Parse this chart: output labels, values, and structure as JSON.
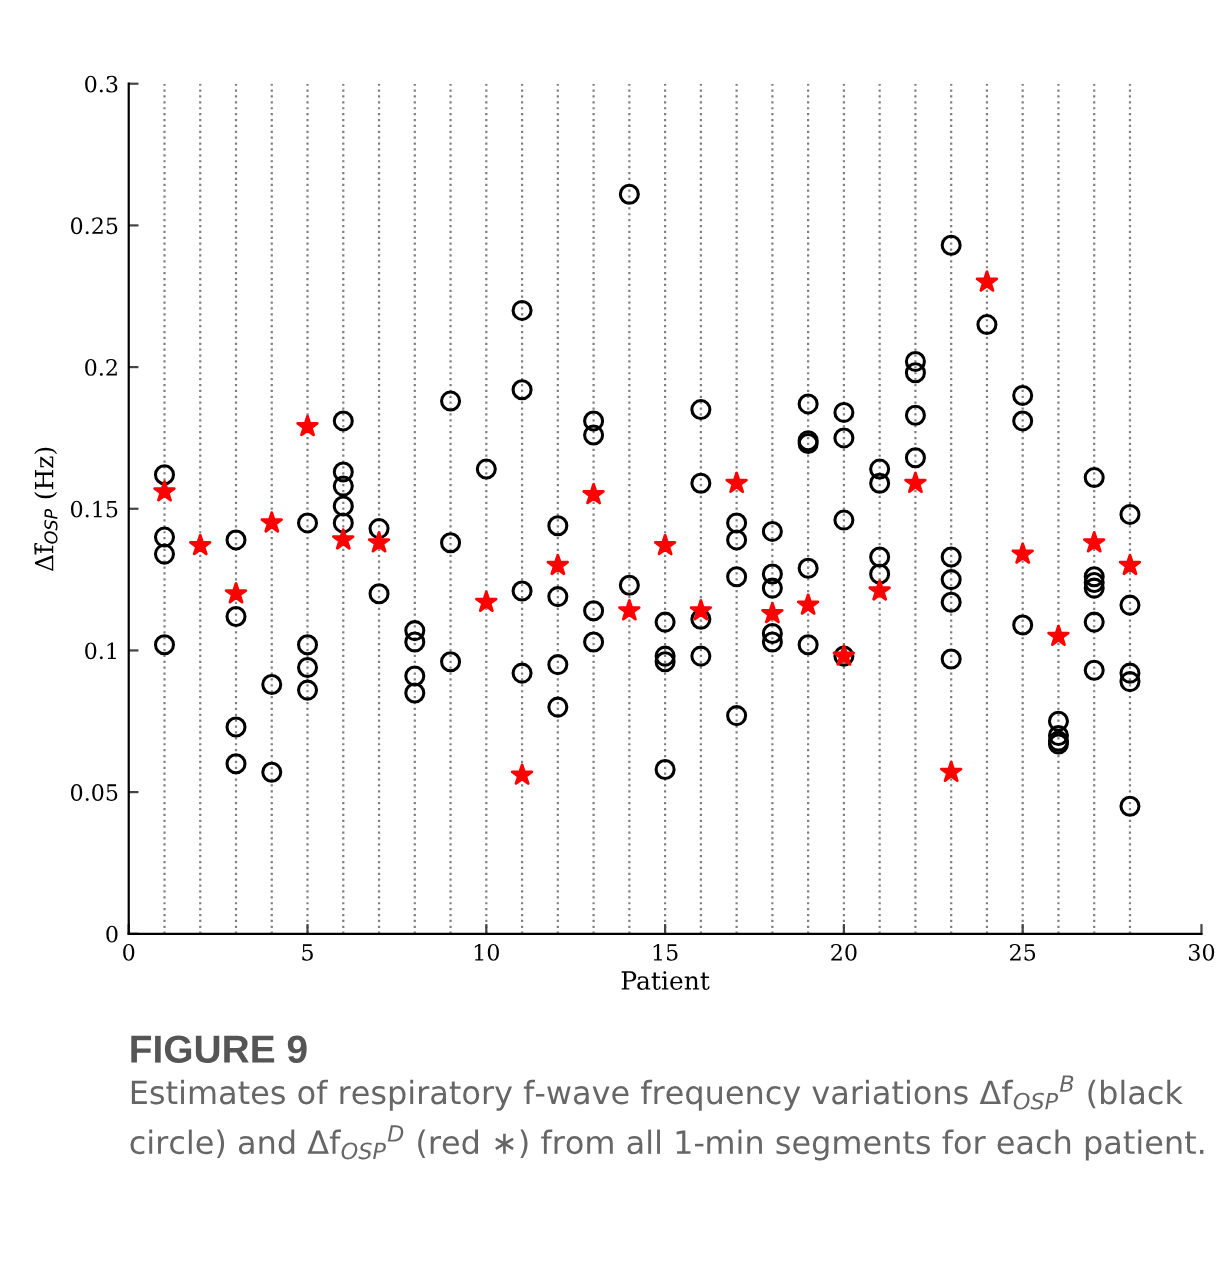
{
  "chart_data": {
    "type": "scatter",
    "title": "FIGURE 9",
    "xlabel": "Patient",
    "ylabel": "Δf̄$_{OSP}$ (Hz)",
    "annotations": [
      "Estimates of respiratory f-wave frequency variations Δf$_{OSP}$$^{B}$ (black circle) and Δf$_{OSP}$$^{D}$ (red ∗) from all 1-min segments for each patient."
    ],
    "xlim": [
      0,
      30
    ],
    "xticks": [
      0,
      5,
      10,
      15,
      20,
      25,
      30
    ],
    "ylim": [
      0,
      0.3
    ],
    "yticks": [
      0,
      0.05,
      0.1,
      0.15,
      0.2,
      0.25,
      0.3
    ],
    "grid": false,
    "legend": false,
    "ref_lines": [
      {
        "axis": "x",
        "value": 1,
        "color": "#808080",
        "line_style": "dotted"
      },
      {
        "axis": "x",
        "value": 2,
        "color": "#808080",
        "line_style": "dotted"
      },
      {
        "axis": "x",
        "value": 3,
        "color": "#808080",
        "line_style": "dotted"
      },
      {
        "axis": "x",
        "value": 4,
        "color": "#808080",
        "line_style": "dotted"
      },
      {
        "axis": "x",
        "value": 5,
        "color": "#808080",
        "line_style": "dotted"
      },
      {
        "axis": "x",
        "value": 6,
        "color": "#808080",
        "line_style": "dotted"
      },
      {
        "axis": "x",
        "value": 7,
        "color": "#808080",
        "line_style": "dotted"
      },
      {
        "axis": "x",
        "value": 8,
        "color": "#808080",
        "line_style": "dotted"
      },
      {
        "axis": "x",
        "value": 9,
        "color": "#808080",
        "line_style": "dotted"
      },
      {
        "axis": "x",
        "value": 10,
        "color": "#808080",
        "line_style": "dotted"
      },
      {
        "axis": "x",
        "value": 11,
        "color": "#808080",
        "line_style": "dotted"
      },
      {
        "axis": "x",
        "value": 12,
        "color": "#808080",
        "line_style": "dotted"
      },
      {
        "axis": "x",
        "value": 13,
        "color": "#808080",
        "line_style": "dotted"
      },
      {
        "axis": "x",
        "value": 14,
        "color": "#808080",
        "line_style": "dotted"
      },
      {
        "axis": "x",
        "value": 15,
        "color": "#808080",
        "line_style": "dotted"
      },
      {
        "axis": "x",
        "value": 16,
        "color": "#808080",
        "line_style": "dotted"
      },
      {
        "axis": "x",
        "value": 17,
        "color": "#808080",
        "line_style": "dotted"
      },
      {
        "axis": "x",
        "value": 18,
        "color": "#808080",
        "line_style": "dotted"
      },
      {
        "axis": "x",
        "value": 19,
        "color": "#808080",
        "line_style": "dotted"
      },
      {
        "axis": "x",
        "value": 20,
        "color": "#808080",
        "line_style": "dotted"
      },
      {
        "axis": "x",
        "value": 21,
        "color": "#808080",
        "line_style": "dotted"
      },
      {
        "axis": "x",
        "value": 22,
        "color": "#808080",
        "line_style": "dotted"
      },
      {
        "axis": "x",
        "value": 23,
        "color": "#808080",
        "line_style": "dotted"
      },
      {
        "axis": "x",
        "value": 24,
        "color": "#808080",
        "line_style": "dotted"
      },
      {
        "axis": "x",
        "value": 25,
        "color": "#808080",
        "line_style": "dotted"
      },
      {
        "axis": "x",
        "value": 26,
        "color": "#808080",
        "line_style": "dotted"
      },
      {
        "axis": "x",
        "value": 27,
        "color": "#808080",
        "line_style": "dotted"
      },
      {
        "axis": "x",
        "value": 28,
        "color": "#808080",
        "line_style": "dotted"
      }
    ],
    "series": [
      {
        "color": "#000000",
        "marker": "circle",
        "x": [
          1,
          1,
          1,
          1,
          3,
          3,
          3,
          3,
          4,
          4,
          5,
          5,
          5,
          5,
          6,
          6,
          6,
          6,
          6,
          7,
          7,
          8,
          8,
          8,
          8,
          9,
          9,
          9,
          10,
          11,
          11,
          11,
          11,
          12,
          12,
          12,
          12,
          13,
          13,
          13,
          13,
          14,
          14,
          15,
          15,
          15,
          15,
          16,
          16,
          16,
          16,
          17,
          17,
          17,
          17,
          18,
          18,
          18,
          18,
          18,
          19,
          19,
          19,
          19,
          19,
          20,
          20,
          20,
          20,
          21,
          21,
          21,
          21,
          22,
          22,
          22,
          22,
          23,
          23,
          23,
          23,
          23,
          24,
          25,
          25,
          25,
          26,
          26,
          26,
          26,
          27,
          27,
          27,
          27,
          27,
          27,
          28,
          28,
          28,
          28,
          28
        ],
        "values": [
          0.162,
          0.14,
          0.134,
          0.102,
          0.139,
          0.112,
          0.073,
          0.06,
          0.088,
          0.057,
          0.145,
          0.102,
          0.094,
          0.086,
          0.181,
          0.163,
          0.158,
          0.151,
          0.145,
          0.143,
          0.12,
          0.107,
          0.103,
          0.091,
          0.085,
          0.188,
          0.138,
          0.096,
          0.164,
          0.22,
          0.192,
          0.121,
          0.092,
          0.144,
          0.119,
          0.095,
          0.08,
          0.181,
          0.176,
          0.114,
          0.103,
          0.261,
          0.123,
          0.11,
          0.098,
          0.096,
          0.058,
          0.185,
          0.159,
          0.111,
          0.098,
          0.145,
          0.139,
          0.126,
          0.077,
          0.142,
          0.127,
          0.122,
          0.106,
          0.103,
          0.187,
          0.174,
          0.173,
          0.129,
          0.102,
          0.184,
          0.175,
          0.146,
          0.098,
          0.164,
          0.159,
          0.133,
          0.127,
          0.202,
          0.198,
          0.183,
          0.168,
          0.243,
          0.133,
          0.125,
          0.117,
          0.097,
          0.215,
          0.19,
          0.181,
          0.109,
          0.075,
          0.07,
          0.068,
          0.067,
          0.161,
          0.126,
          0.124,
          0.122,
          0.11,
          0.093,
          0.148,
          0.116,
          0.092,
          0.089,
          0.045
        ]
      },
      {
        "color": "#ff0000",
        "marker": "star",
        "x": [
          1,
          2,
          3,
          4,
          5,
          6,
          7,
          10,
          11,
          12,
          13,
          14,
          15,
          16,
          17,
          18,
          19,
          20,
          21,
          22,
          23,
          24,
          25,
          26,
          27,
          28
        ],
        "values": [
          0.156,
          0.137,
          0.12,
          0.145,
          0.179,
          0.139,
          0.138,
          0.117,
          0.056,
          0.13,
          0.155,
          0.114,
          0.137,
          0.114,
          0.159,
          0.113,
          0.116,
          0.098,
          0.121,
          0.159,
          0.057,
          0.23,
          0.134,
          0.105,
          0.138,
          0.13
        ]
      }
    ]
  }
}
